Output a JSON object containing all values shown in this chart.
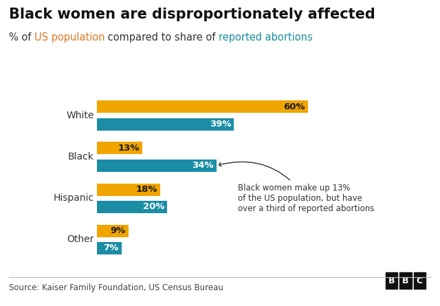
{
  "title": "Black women are disproportionately affected",
  "subtitle_parts": [
    {
      "text": "% of ",
      "color": "#333333"
    },
    {
      "text": "US population",
      "color": "#E07820"
    },
    {
      "text": " compared to share of ",
      "color": "#333333"
    },
    {
      "text": "reported abortions",
      "color": "#1A8FA0"
    }
  ],
  "categories": [
    "White",
    "Black",
    "Hispanic",
    "Other"
  ],
  "population_pct": [
    60,
    13,
    18,
    9
  ],
  "abortion_pct": [
    39,
    34,
    20,
    7
  ],
  "population_color": "#F0A500",
  "abortion_color": "#1B8EA6",
  "annotation_text": "Black women make up 13%\nof the US population, but have\nover a third of reported abortions",
  "source_text": "Source: Kaiser Family Foundation, US Census Bureau",
  "background_color": "#ffffff",
  "title_fontsize": 15,
  "subtitle_fontsize": 10.5,
  "category_fontsize": 10,
  "bar_label_fontsize": 9.5,
  "annotation_fontsize": 8.5,
  "source_fontsize": 8.5
}
